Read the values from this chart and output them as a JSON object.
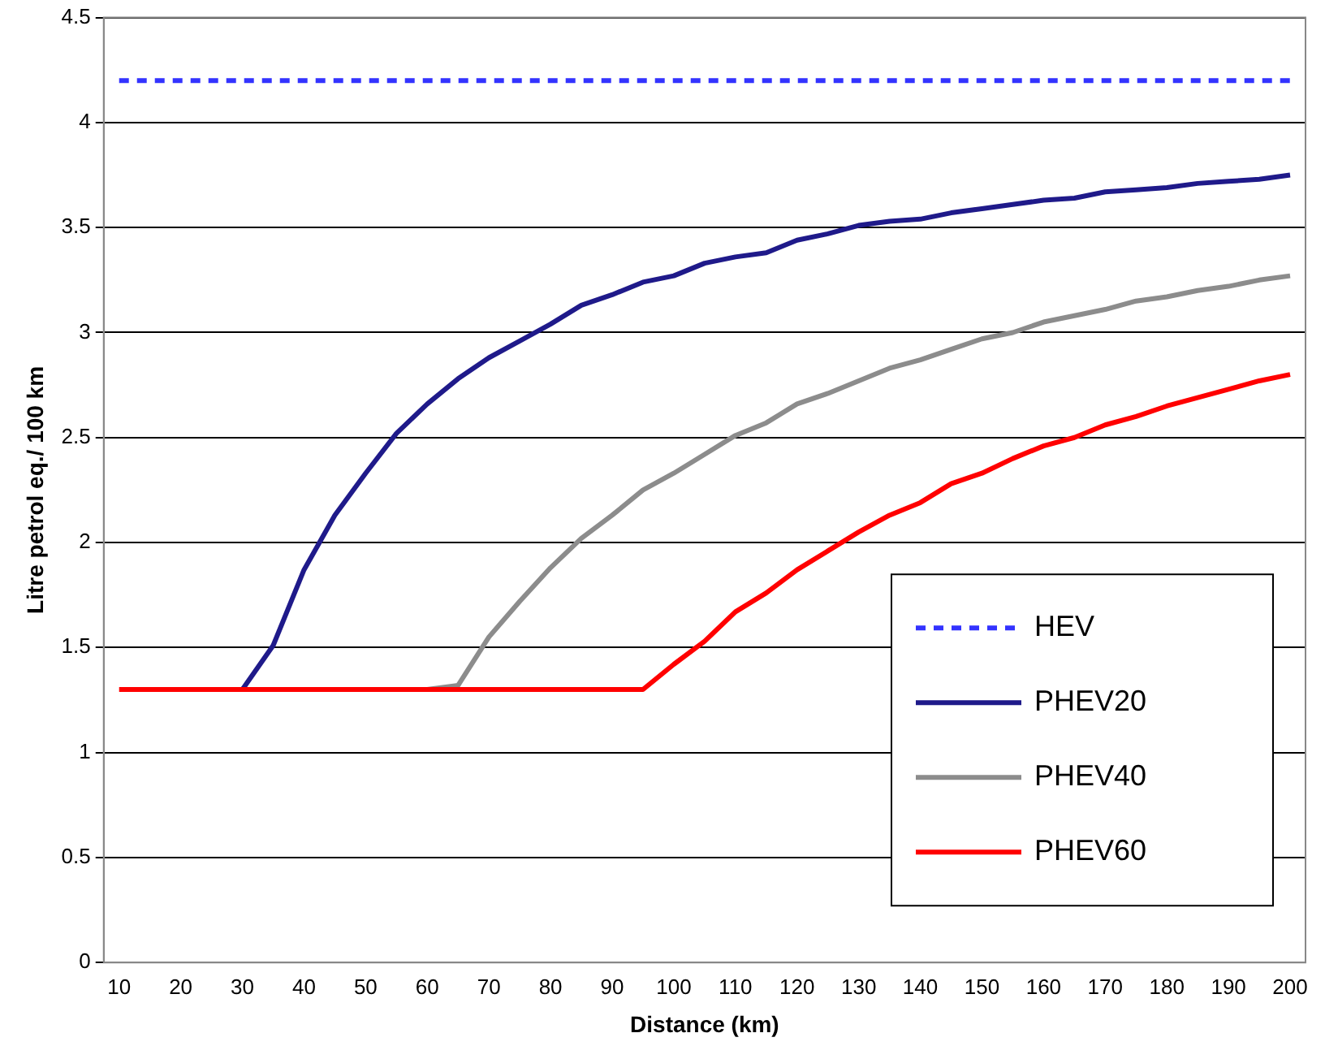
{
  "chart_data": {
    "type": "line",
    "xlabel": "Distance (km)",
    "ylabel": "Litre petrol eq./ 100 km",
    "x": [
      10,
      15,
      20,
      25,
      30,
      35,
      40,
      45,
      50,
      55,
      60,
      65,
      70,
      75,
      80,
      85,
      90,
      95,
      100,
      105,
      110,
      115,
      120,
      125,
      130,
      135,
      140,
      145,
      150,
      155,
      160,
      165,
      170,
      175,
      180,
      185,
      190,
      195,
      200
    ],
    "series": [
      {
        "name": "HEV",
        "color": "#3333ff",
        "line_style": "dashed",
        "values": [
          4.2,
          4.2,
          4.2,
          4.2,
          4.2,
          4.2,
          4.2,
          4.2,
          4.2,
          4.2,
          4.2,
          4.2,
          4.2,
          4.2,
          4.2,
          4.2,
          4.2,
          4.2,
          4.2,
          4.2,
          4.2,
          4.2,
          4.2,
          4.2,
          4.2,
          4.2,
          4.2,
          4.2,
          4.2,
          4.2,
          4.2,
          4.2,
          4.2,
          4.2,
          4.2,
          4.2,
          4.2,
          4.2,
          4.2
        ]
      },
      {
        "name": "PHEV20",
        "color": "#1f1a8a",
        "line_style": "solid",
        "values": [
          null,
          null,
          null,
          null,
          1.3,
          1.51,
          1.87,
          2.13,
          2.33,
          2.52,
          2.66,
          2.78,
          2.88,
          2.96,
          3.04,
          3.13,
          3.18,
          3.24,
          3.27,
          3.33,
          3.36,
          3.38,
          3.44,
          3.47,
          3.51,
          3.53,
          3.54,
          3.57,
          3.59,
          3.61,
          3.63,
          3.64,
          3.67,
          3.68,
          3.69,
          3.71,
          3.72,
          3.73,
          3.75
        ]
      },
      {
        "name": "PHEV40",
        "color": "#8c8c8c",
        "line_style": "solid",
        "values": [
          null,
          null,
          null,
          null,
          null,
          null,
          null,
          null,
          null,
          null,
          1.3,
          1.32,
          1.55,
          1.72,
          1.88,
          2.02,
          2.13,
          2.25,
          2.33,
          2.42,
          2.51,
          2.57,
          2.66,
          2.71,
          2.77,
          2.83,
          2.87,
          2.92,
          2.97,
          3.0,
          3.05,
          3.08,
          3.11,
          3.15,
          3.17,
          3.2,
          3.22,
          3.25,
          3.27
        ]
      },
      {
        "name": "PHEV60",
        "color": "#ff0000",
        "line_style": "solid",
        "values": [
          1.3,
          1.3,
          1.3,
          1.3,
          1.3,
          1.3,
          1.3,
          1.3,
          1.3,
          1.3,
          1.3,
          1.3,
          1.3,
          1.3,
          1.3,
          1.3,
          1.3,
          1.3,
          1.42,
          1.53,
          1.67,
          1.76,
          1.87,
          1.96,
          2.05,
          2.13,
          2.19,
          2.28,
          2.33,
          2.4,
          2.46,
          2.5,
          2.56,
          2.6,
          2.65,
          2.69,
          2.73,
          2.77,
          2.8
        ]
      }
    ],
    "xlim": [
      7.5,
      202.5
    ],
    "xticks": [
      10,
      20,
      30,
      40,
      50,
      60,
      70,
      80,
      90,
      100,
      110,
      120,
      130,
      140,
      150,
      160,
      170,
      180,
      190,
      200
    ],
    "ylim": [
      0,
      4.5
    ],
    "yticks": [
      0,
      0.5,
      1,
      1.5,
      2,
      2.5,
      3,
      3.5,
      4,
      4.5
    ],
    "grid": "y",
    "legend": "bottom right",
    "marker": "none"
  }
}
